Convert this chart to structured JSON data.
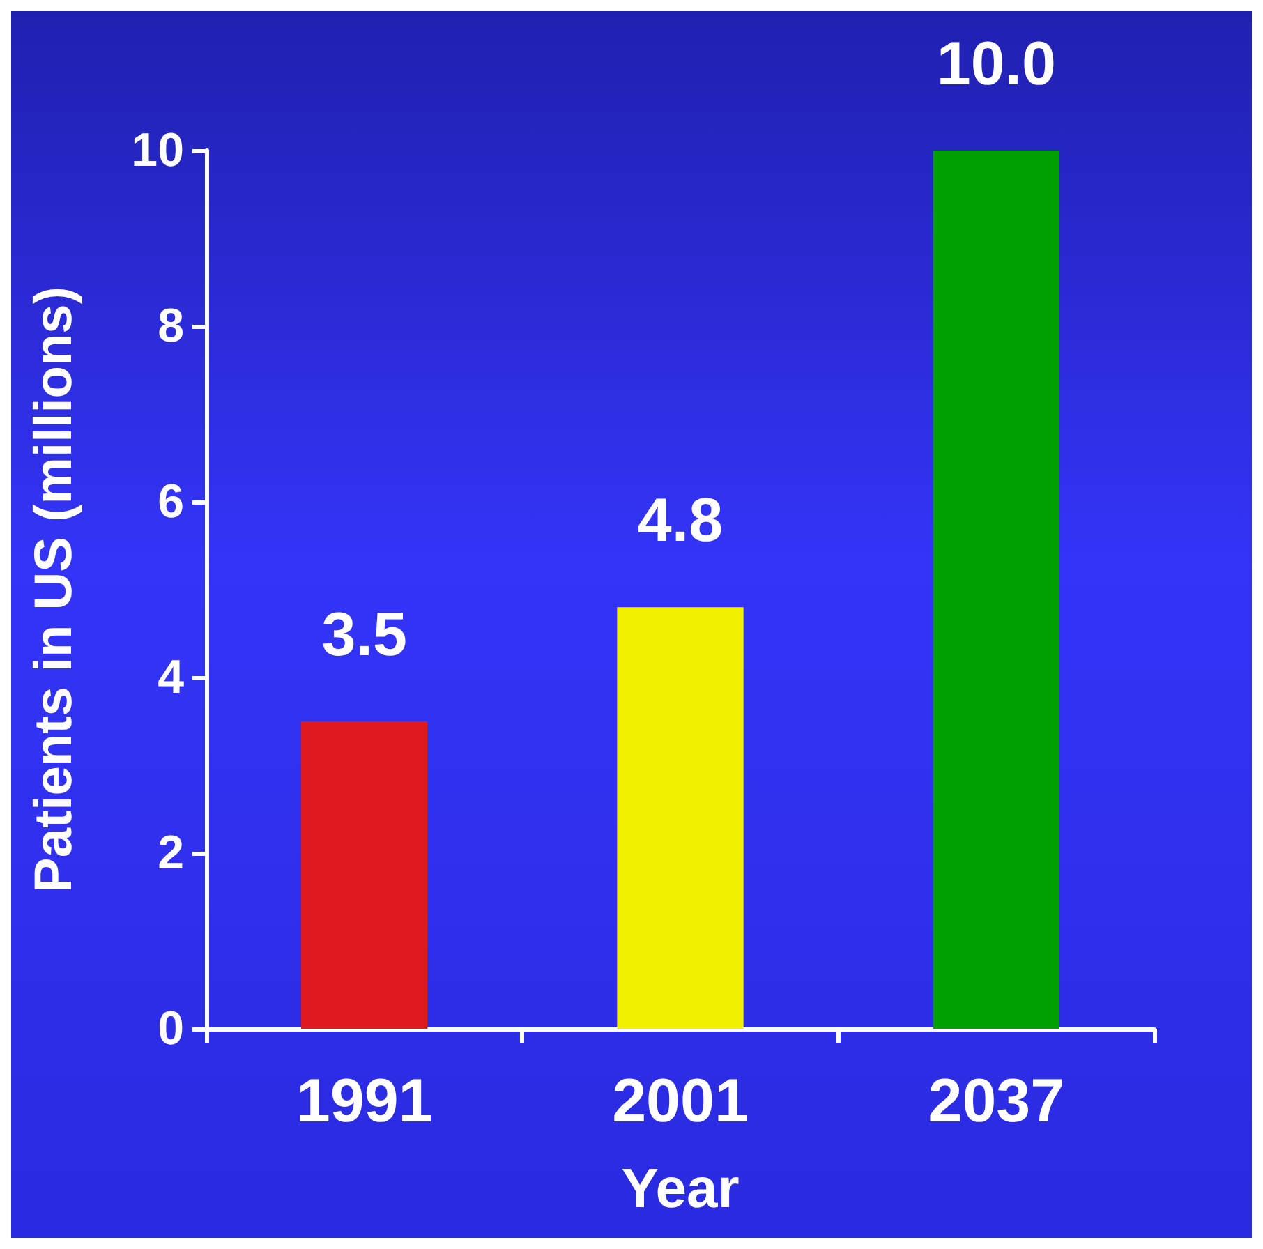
{
  "chart_data": {
    "type": "bar",
    "xlabel": "Year",
    "ylabel": "Patients in US (millions)",
    "categories": [
      "1991",
      "2001",
      "2037"
    ],
    "values": [
      3.5,
      4.8,
      10.0
    ],
    "colors": [
      "#e01820",
      "#f0f000",
      "#00a000"
    ],
    "value_labels": [
      "3.5",
      "4.8",
      "10.0"
    ],
    "ylim": [
      0,
      10
    ],
    "yticks": [
      0,
      2,
      4,
      6,
      8,
      10
    ],
    "grid": false
  }
}
